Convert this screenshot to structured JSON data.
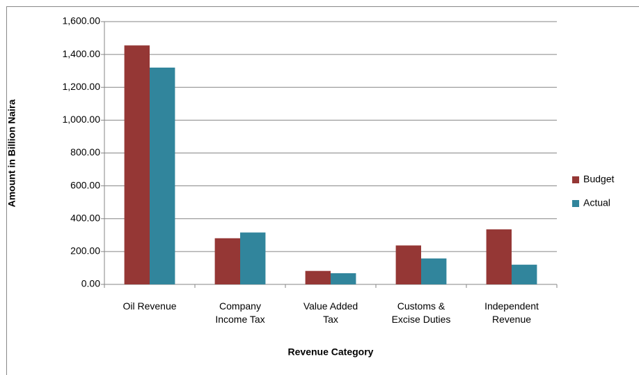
{
  "chart_data": {
    "type": "bar",
    "x_label": "Revenue Category",
    "y_label": "Amount in Billion Naira",
    "categories": [
      [
        "Oil Revenue"
      ],
      [
        "Company",
        "Income Tax"
      ],
      [
        "Value Added",
        "Tax"
      ],
      [
        "Customs &",
        "Excise Duties"
      ],
      [
        "Independent",
        "Revenue"
      ]
    ],
    "series": [
      {
        "name": "Budget",
        "color": "#953735",
        "values": [
          1455,
          281,
          82,
          237,
          335
        ]
      },
      {
        "name": "Actual",
        "color": "#31859c",
        "values": [
          1320,
          316,
          68,
          158,
          120
        ]
      }
    ],
    "ylim": [
      0,
      1600
    ],
    "yticks": [
      {
        "value": 0,
        "label": "0.00"
      },
      {
        "value": 200,
        "label": "200.00"
      },
      {
        "value": 400,
        "label": "400.00"
      },
      {
        "value": 600,
        "label": "600.00"
      },
      {
        "value": 800,
        "label": "800.00"
      },
      {
        "value": 1000,
        "label": "1,000.00"
      },
      {
        "value": 1200,
        "label": "1,200.00"
      },
      {
        "value": 1400,
        "label": "1,400.00"
      },
      {
        "value": 1600,
        "label": "1,600.00"
      }
    ],
    "grid": true,
    "legend": "right"
  }
}
